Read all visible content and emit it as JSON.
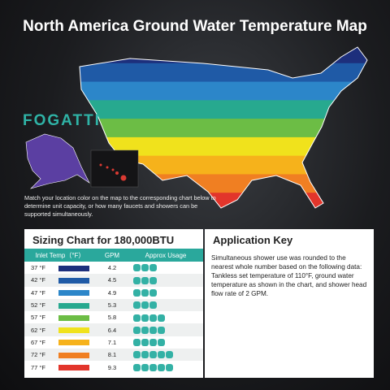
{
  "header": {
    "title": "North America Ground Water Temperature Map"
  },
  "brand": "FOGATTI",
  "note": "Match your location color on the map to the corresponding chart below to determine unit capacity, or how many faucets and showers can be supported simultaneously.",
  "sizing_chart": {
    "title": "Sizing Chart for 180,000BTU",
    "columns": [
      "Inlet Temp（°F）",
      "GPM",
      "Approx Usage"
    ],
    "rows": [
      {
        "temp": "37 °F",
        "color": "#1d2f7c",
        "gpm": 4.2,
        "showers": 3
      },
      {
        "temp": "42 °F",
        "color": "#1f5aa6",
        "gpm": 4.5,
        "showers": 3
      },
      {
        "temp": "47 °F",
        "color": "#2c86c9",
        "gpm": 4.9,
        "showers": 3
      },
      {
        "temp": "52 °F",
        "color": "#27a98f",
        "gpm": 5.3,
        "showers": 3
      },
      {
        "temp": "57 °F",
        "color": "#6cbd45",
        "gpm": 5.8,
        "showers": 4
      },
      {
        "temp": "62 °F",
        "color": "#f0e21c",
        "gpm": 6.4,
        "showers": 4
      },
      {
        "temp": "67 °F",
        "color": "#f6b21b",
        "gpm": 7.1,
        "showers": 4
      },
      {
        "temp": "72 °F",
        "color": "#f07f22",
        "gpm": 8.1,
        "showers": 5
      },
      {
        "temp": "77 °F",
        "color": "#e2352b",
        "gpm": 9.3,
        "showers": 5
      }
    ]
  },
  "application_key": {
    "title": "Application Key",
    "text": "Simultaneous shower use was rounded to the nearest whole number based on the following data: Tankless set temperature of 110°F, ground water temperature as shown in the chart, and shower head flow rate of 2 GPM."
  }
}
